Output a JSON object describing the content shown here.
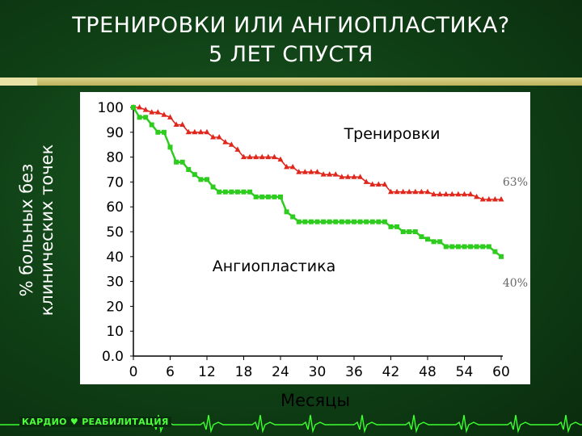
{
  "slide": {
    "title_line1": "ТРЕНИРОВКИ ИЛИ АНГИОПЛАСТИКА?",
    "title_line2": "5 ЛЕТ СПУСТЯ",
    "footer_logo_left": "КАРДИО",
    "footer_logo_right": "РЕАБИЛИТАЦИЯ",
    "colors": {
      "background": "#0d3a12",
      "accent": "#cfc674",
      "ecg": "#3cff2e"
    }
  },
  "chart_data": {
    "type": "line",
    "title": "",
    "xlabel": "Месяцы",
    "ylabel_line1": "% больных без",
    "ylabel_line2": "клинических точек",
    "xlim": [
      0,
      60
    ],
    "ylim": [
      0,
      100
    ],
    "x_ticks": [
      "0",
      "6",
      "12",
      "18",
      "24",
      "30",
      "36",
      "42",
      "48",
      "54",
      "60"
    ],
    "y_ticks": [
      "0.0",
      "10",
      "20",
      "30",
      "40",
      "50",
      "60",
      "70",
      "80",
      "90",
      "100"
    ],
    "grid": false,
    "series": [
      {
        "name": "Тренировки",
        "color": "#e0271c",
        "marker": "triangle",
        "end_label": "63%",
        "points": [
          [
            0,
            100
          ],
          [
            1,
            100
          ],
          [
            2,
            99
          ],
          [
            3,
            98
          ],
          [
            4,
            98
          ],
          [
            5,
            97
          ],
          [
            6,
            96
          ],
          [
            7,
            93
          ],
          [
            8,
            93
          ],
          [
            9,
            90
          ],
          [
            10,
            90
          ],
          [
            11,
            90
          ],
          [
            12,
            90
          ],
          [
            13,
            88
          ],
          [
            14,
            88
          ],
          [
            15,
            86
          ],
          [
            16,
            85
          ],
          [
            17,
            83
          ],
          [
            18,
            80
          ],
          [
            19,
            80
          ],
          [
            20,
            80
          ],
          [
            21,
            80
          ],
          [
            22,
            80
          ],
          [
            23,
            80
          ],
          [
            24,
            79
          ],
          [
            25,
            76
          ],
          [
            26,
            76
          ],
          [
            27,
            74
          ],
          [
            28,
            74
          ],
          [
            29,
            74
          ],
          [
            30,
            74
          ],
          [
            31,
            73
          ],
          [
            32,
            73
          ],
          [
            33,
            73
          ],
          [
            34,
            72
          ],
          [
            35,
            72
          ],
          [
            36,
            72
          ],
          [
            37,
            72
          ],
          [
            38,
            70
          ],
          [
            39,
            69
          ],
          [
            40,
            69
          ],
          [
            41,
            69
          ],
          [
            42,
            66
          ],
          [
            43,
            66
          ],
          [
            44,
            66
          ],
          [
            45,
            66
          ],
          [
            46,
            66
          ],
          [
            47,
            66
          ],
          [
            48,
            66
          ],
          [
            49,
            65
          ],
          [
            50,
            65
          ],
          [
            51,
            65
          ],
          [
            52,
            65
          ],
          [
            53,
            65
          ],
          [
            54,
            65
          ],
          [
            55,
            65
          ],
          [
            56,
            64
          ],
          [
            57,
            63
          ],
          [
            58,
            63
          ],
          [
            59,
            63
          ],
          [
            60,
            63
          ]
        ]
      },
      {
        "name": "Ангиопластика",
        "color": "#2ecc1f",
        "marker": "square",
        "end_label": "40%",
        "points": [
          [
            0,
            100
          ],
          [
            1,
            96
          ],
          [
            2,
            96
          ],
          [
            3,
            93
          ],
          [
            4,
            90
          ],
          [
            5,
            90
          ],
          [
            6,
            84
          ],
          [
            7,
            78
          ],
          [
            8,
            78
          ],
          [
            9,
            75
          ],
          [
            10,
            73
          ],
          [
            11,
            71
          ],
          [
            12,
            71
          ],
          [
            13,
            68
          ],
          [
            14,
            66
          ],
          [
            15,
            66
          ],
          [
            16,
            66
          ],
          [
            17,
            66
          ],
          [
            18,
            66
          ],
          [
            19,
            66
          ],
          [
            20,
            64
          ],
          [
            21,
            64
          ],
          [
            22,
            64
          ],
          [
            23,
            64
          ],
          [
            24,
            64
          ],
          [
            25,
            58
          ],
          [
            26,
            56
          ],
          [
            27,
            54
          ],
          [
            28,
            54
          ],
          [
            29,
            54
          ],
          [
            30,
            54
          ],
          [
            31,
            54
          ],
          [
            32,
            54
          ],
          [
            33,
            54
          ],
          [
            34,
            54
          ],
          [
            35,
            54
          ],
          [
            36,
            54
          ],
          [
            37,
            54
          ],
          [
            38,
            54
          ],
          [
            39,
            54
          ],
          [
            40,
            54
          ],
          [
            41,
            54
          ],
          [
            42,
            52
          ],
          [
            43,
            52
          ],
          [
            44,
            50
          ],
          [
            45,
            50
          ],
          [
            46,
            50
          ],
          [
            47,
            48
          ],
          [
            48,
            47
          ],
          [
            49,
            46
          ],
          [
            50,
            46
          ],
          [
            51,
            44
          ],
          [
            52,
            44
          ],
          [
            53,
            44
          ],
          [
            54,
            44
          ],
          [
            55,
            44
          ],
          [
            56,
            44
          ],
          [
            57,
            44
          ],
          [
            58,
            44
          ],
          [
            59,
            42
          ],
          [
            60,
            40
          ]
        ]
      }
    ]
  }
}
